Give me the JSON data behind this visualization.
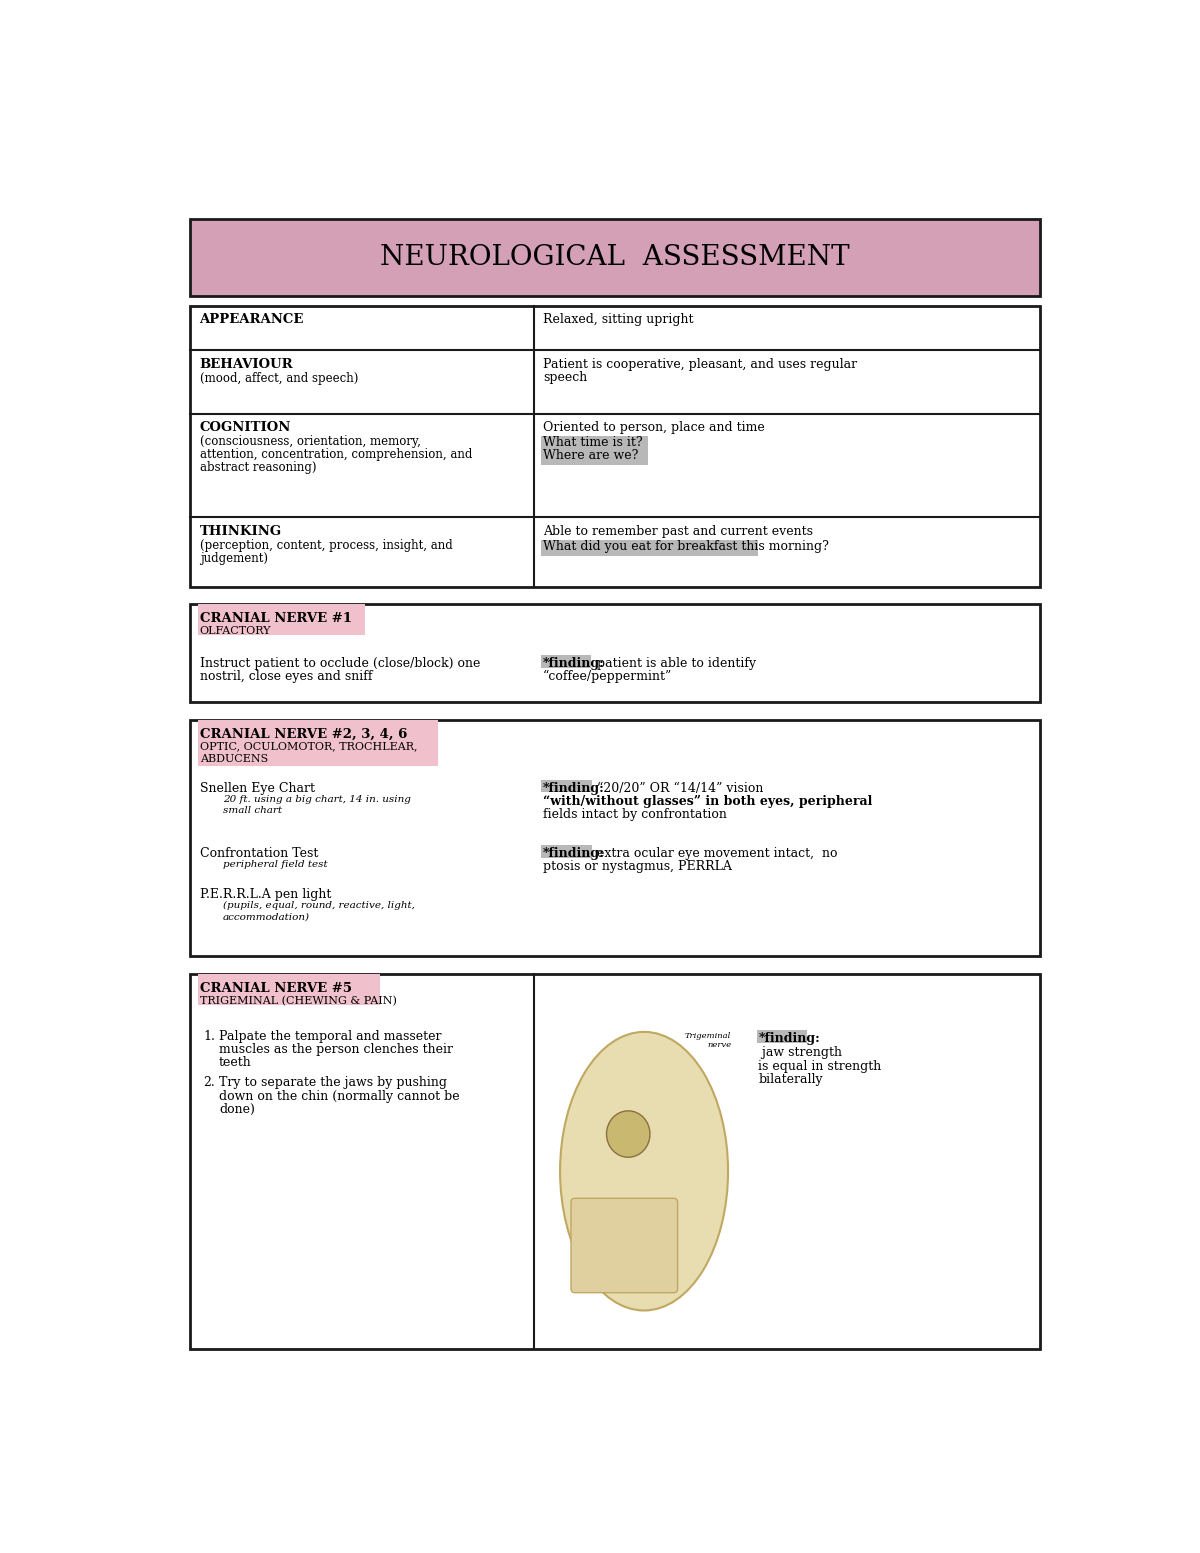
{
  "title": "NEUROLOGICAL  ASSESSMENT",
  "title_bg": "#d4a0b5",
  "page_bg": "#ffffff",
  "border_color": "#1a1a1a",
  "highlight_pink": "#f0c0cc",
  "highlight_gray": "#b8b8b8",
  "section1_rows": [
    {
      "left_bold": "APPEARANCE",
      "left_normal": "",
      "right_normal": "Relaxed, sitting upright",
      "right_highlight": ""
    },
    {
      "left_bold": "BEHAVIOUR",
      "left_normal": "(mood, affect, and speech)",
      "right_normal": "Patient is cooperative, pleasant, and uses regular\nspeech",
      "right_highlight": ""
    },
    {
      "left_bold": "COGNITION",
      "left_normal": "(consciousness, orientation, memory,\nattention, concentration, comprehension, and\nabstract reasoning)",
      "right_normal": "Oriented to person, place and time",
      "right_highlight": "What time is it?\nWhere are we?"
    },
    {
      "left_bold": "THINKING",
      "left_normal": "(perception, content, process, insight, and\njudgement)",
      "right_normal": "Able to remember past and current events",
      "right_highlight": "What did you eat for breakfast this morning?"
    }
  ],
  "cn1": {
    "title": "CRANIAL NERVE #1",
    "subtitle": "OLFACTORY",
    "left": "Instruct patient to occlude (close/block) one\nnostril, close eyes and sniff",
    "right_pre": "*finding:",
    "right_post": " patient is able to identify\n“coffee/peppermint”"
  },
  "cn246": {
    "title": "CRANIAL NERVE #2, 3, 4, 6",
    "subtitle1": "OPTIC, OCULOMOTOR, TROCHLEAR,",
    "subtitle2": "ABDUCENS",
    "items": [
      {
        "label": "Snellen Eye Chart",
        "detail1": "20 ft. using a big chart, 14 in. using",
        "detail2": "small chart",
        "finding_pre": "*finding:",
        "finding1": " “20/20” OR “14/14” vision",
        "finding2": "“with/without glasses” in both eyes, peripheral",
        "finding3": "fields intact by confrontation",
        "finding2_bold": true
      },
      {
        "label": "Confrontation Test",
        "detail1": "peripheral field test",
        "detail2": "",
        "finding_pre": "*finding:",
        "finding1": " extra ocular eye movement intact,  no",
        "finding2": "ptosis or nystagmus, PERRLA",
        "finding3": "",
        "finding2_bold": false
      },
      {
        "label": "P.E.R.R.L.A pen light",
        "detail1": "(pupils, equal, round, reactive, light,",
        "detail2": "accommodation)",
        "finding_pre": "",
        "finding1": "",
        "finding2": "",
        "finding3": "",
        "finding2_bold": false
      }
    ]
  },
  "cn5": {
    "title": "CRANIAL NERVE #5",
    "subtitle": "TRIGEMINAL (CHEWING & PAIN)",
    "item1_lines": [
      "Palpate the temporal and masseter",
      "muscles as the person clenches their",
      "teeth"
    ],
    "item2_lines": [
      "Try to separate the jaws by pushing",
      "down on the chin (normally cannot be",
      "done)"
    ],
    "finding_pre": "*finding:",
    "finding_lines": [
      " jaw strength",
      "is equal in strength",
      "bilaterally"
    ]
  }
}
